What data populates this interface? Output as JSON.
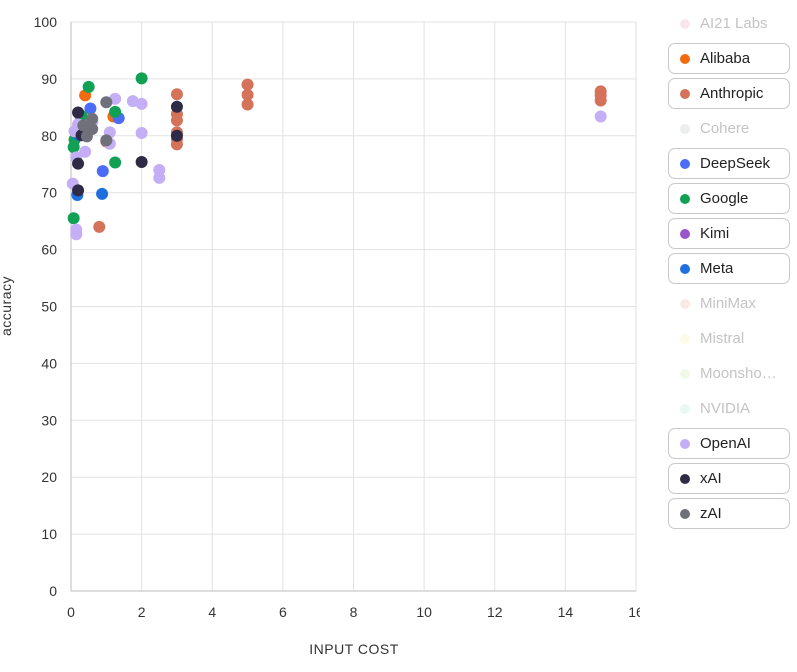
{
  "chart_data": {
    "type": "scatter",
    "xlabel": "INPUT COST",
    "ylabel": "accuracy",
    "xlim": [
      0,
      16
    ],
    "ylim": [
      0,
      100
    ],
    "x_ticks": [
      0,
      2,
      4,
      6,
      8,
      10,
      12,
      14,
      16
    ],
    "y_ticks": [
      0,
      10,
      20,
      30,
      40,
      50,
      60,
      70,
      80,
      90,
      100
    ],
    "grid": true,
    "legend_position": "right",
    "series": [
      {
        "name": "AI21 Labs",
        "color": "#f4b6c8",
        "active": false,
        "points": []
      },
      {
        "name": "Alibaba",
        "color": "#f26b0f",
        "active": true,
        "points": [
          [
            0.4,
            87.1
          ],
          [
            0.2,
            81.0
          ],
          [
            1.2,
            83.4
          ]
        ]
      },
      {
        "name": "Anthropic",
        "color": "#d4735a",
        "active": true,
        "points": [
          [
            3,
            87.3
          ],
          [
            3,
            83.8
          ],
          [
            3,
            82.7
          ],
          [
            3,
            80.6
          ],
          [
            3,
            79.4
          ],
          [
            3,
            78.5
          ],
          [
            5,
            89.0
          ],
          [
            5,
            87.2
          ],
          [
            5,
            85.5
          ],
          [
            15,
            87.8
          ],
          [
            15,
            87.1
          ],
          [
            15,
            86.2
          ],
          [
            0.8,
            64.0
          ],
          [
            1.0,
            79.0
          ],
          [
            1.25,
            83.9
          ]
        ]
      },
      {
        "name": "Cohere",
        "color": "#c7cdc9",
        "active": false,
        "points": []
      },
      {
        "name": "DeepSeek",
        "color": "#4a6cf7",
        "active": true,
        "points": [
          [
            0.55,
            84.8
          ],
          [
            1.35,
            83.1
          ],
          [
            0.9,
            73.8
          ],
          [
            0.27,
            83.5
          ]
        ]
      },
      {
        "name": "Google",
        "color": "#12a055",
        "active": true,
        "points": [
          [
            2.0,
            90.1
          ],
          [
            0.5,
            88.6
          ],
          [
            1.25,
            75.3
          ],
          [
            0.1,
            79.3
          ],
          [
            0.075,
            78.0
          ],
          [
            0.075,
            65.5
          ],
          [
            0.3,
            83.5
          ],
          [
            1.25,
            84.2
          ]
        ]
      },
      {
        "name": "Kimi",
        "color": "#9b55c9",
        "active": true,
        "points": []
      },
      {
        "name": "Meta",
        "color": "#1f6fde",
        "active": true,
        "points": [
          [
            0.18,
            69.6
          ],
          [
            0.88,
            69.8
          ],
          [
            0.2,
            80.2
          ]
        ]
      },
      {
        "name": "MiniMax",
        "color": "#f2c4ae",
        "active": false,
        "points": []
      },
      {
        "name": "Mistral",
        "color": "#fbf0bd",
        "active": false,
        "points": []
      },
      {
        "name": "Moonsho…",
        "color": "#d4edbb",
        "active": false,
        "points": []
      },
      {
        "name": "NVIDIA",
        "color": "#bfeddb",
        "active": false,
        "points": []
      },
      {
        "name": "OpenAI",
        "color": "#c4aef5",
        "active": true,
        "points": [
          [
            15,
            83.4
          ],
          [
            2.0,
            85.6
          ],
          [
            1.75,
            86.1
          ],
          [
            1.25,
            86.5
          ],
          [
            2.0,
            80.5
          ],
          [
            1.1,
            80.6
          ],
          [
            1.1,
            78.6
          ],
          [
            2.5,
            74.0
          ],
          [
            2.5,
            72.6
          ],
          [
            0.4,
            77.2
          ],
          [
            0.15,
            63.5
          ],
          [
            0.15,
            62.7
          ],
          [
            0.05,
            71.6
          ],
          [
            0.15,
            76.2
          ],
          [
            0.6,
            82.4
          ],
          [
            0.2,
            82.0
          ],
          [
            0.1,
            80.8
          ]
        ]
      },
      {
        "name": "xAI",
        "color": "#2f2b47",
        "active": true,
        "points": [
          [
            3,
            85.1
          ],
          [
            3,
            80.0
          ],
          [
            2.0,
            75.4
          ],
          [
            0.2,
            84.1
          ],
          [
            0.2,
            75.1
          ],
          [
            0.2,
            70.4
          ],
          [
            0.3,
            80.1
          ]
        ]
      },
      {
        "name": "zAI",
        "color": "#6f7079",
        "active": true,
        "points": [
          [
            1.0,
            85.9
          ],
          [
            0.6,
            83.0
          ],
          [
            0.6,
            81.2
          ],
          [
            0.35,
            81.8
          ],
          [
            0.45,
            79.9
          ],
          [
            1.0,
            79.2
          ]
        ]
      }
    ]
  }
}
